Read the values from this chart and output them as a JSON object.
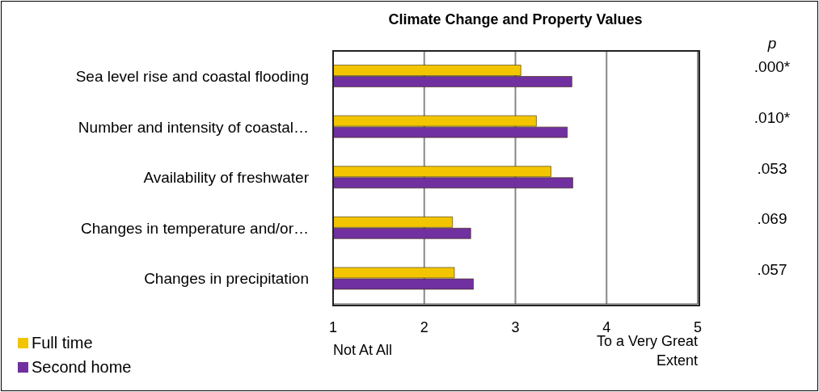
{
  "chart_data": {
    "type": "bar",
    "orientation": "horizontal",
    "title": "Climate Change and Property Values",
    "categories": [
      "Sea level rise and coastal flooding",
      "Number and intensity of coastal…",
      "Availability of freshwater",
      "Changes in temperature and/or…",
      "Changes in precipitation"
    ],
    "series": [
      {
        "name": "Full time",
        "color": "#f2c500",
        "values": [
          3.06,
          3.23,
          3.39,
          2.31,
          2.33
        ]
      },
      {
        "name": "Second home",
        "color": "#7030a0",
        "values": [
          3.62,
          3.57,
          3.63,
          2.51,
          2.54
        ]
      }
    ],
    "xlim": [
      1,
      5
    ],
    "xticks": [
      1,
      2,
      3,
      4,
      5
    ],
    "grid": "x",
    "legend": "bottom left",
    "annotations": [
      "p",
      "Not At All",
      "To a Very Great Extent",
      ".000*",
      ".010*",
      ".053",
      ".069",
      ".057"
    ]
  }
}
